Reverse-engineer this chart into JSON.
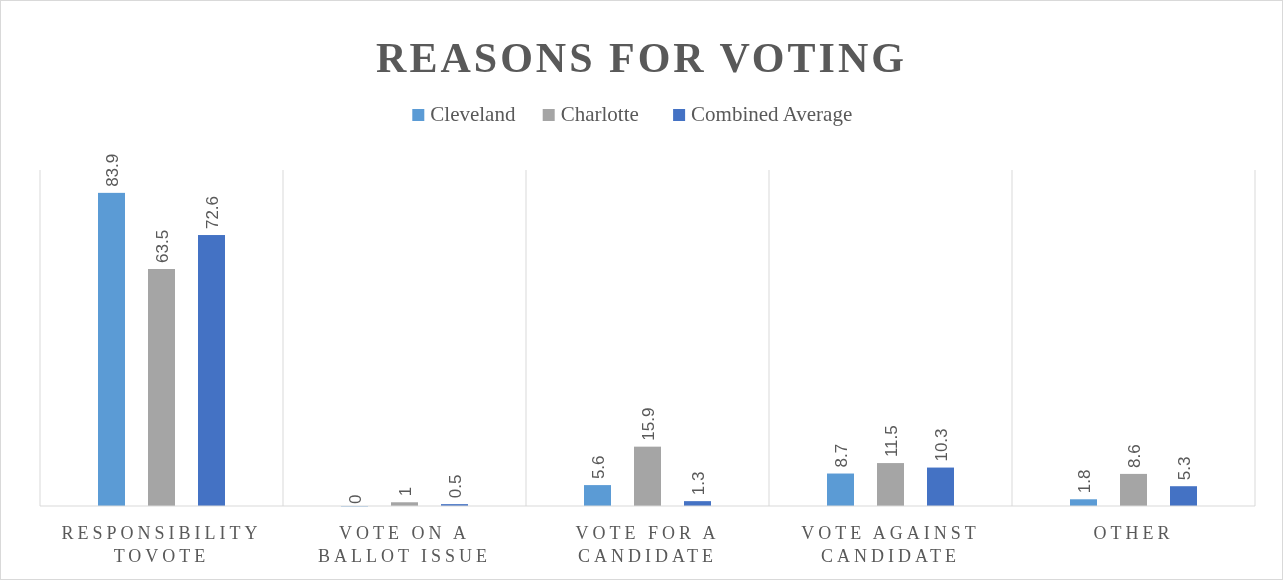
{
  "chart_data": {
    "type": "bar",
    "title": "REASONS FOR VOTING",
    "categories": [
      "RESPONSIBILITY TOVOTE",
      "VOTE ON A BALLOT ISSUE",
      "VOTE FOR A CANDIDATE",
      "VOTE AGAINST CANDIDATE",
      "OTHER"
    ],
    "series": [
      {
        "name": "Cleveland",
        "color": "#5b9bd5",
        "values": [
          83.9,
          0,
          5.6,
          8.7,
          1.8
        ]
      },
      {
        "name": "Charlotte",
        "color": "#a5a5a5",
        "values": [
          63.5,
          1,
          15.9,
          11.5,
          8.6
        ]
      },
      {
        "name": "Combined Average",
        "color": "#4472c4",
        "values": [
          72.6,
          0.5,
          1.3,
          10.3,
          5.3
        ]
      }
    ],
    "data_labels": true,
    "grid": "x",
    "legend": "top"
  }
}
